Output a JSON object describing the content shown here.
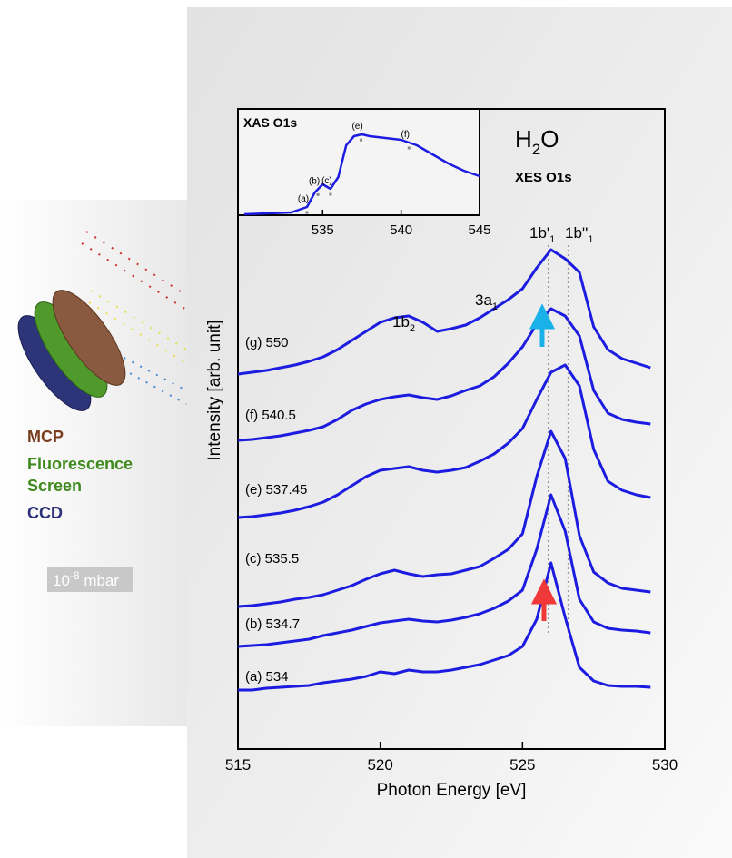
{
  "chart_data": [
    {
      "type": "line",
      "xlabel": "Photon Energy [eV]",
      "ylabel": "Intensity [arb. unit]",
      "x": [
        515,
        515.5,
        516,
        516.5,
        517,
        517.5,
        518,
        518.5,
        519,
        519.5,
        520,
        520.5,
        521,
        521.5,
        522,
        522.5,
        523,
        523.5,
        524,
        524.5,
        525,
        525.5,
        526,
        526.5,
        527,
        527.5,
        528,
        528.5,
        529,
        529.5
      ],
      "series": [
        {
          "name": "(a) 534",
          "color": "#1c1ce0",
          "values": [
            65,
            65,
            67,
            68,
            69,
            70,
            73,
            75,
            77,
            80,
            85,
            83,
            87,
            85,
            85,
            87,
            90,
            93,
            98,
            103,
            113,
            143,
            205,
            145,
            90,
            75,
            70,
            69,
            69,
            68
          ]
        },
        {
          "name": "(b) 534.7",
          "color": "#1c1ce0",
          "values": [
            113,
            114,
            115,
            117,
            119,
            121,
            125,
            128,
            131,
            135,
            139,
            141,
            143,
            141,
            140,
            142,
            145,
            149,
            155,
            163,
            175,
            220,
            280,
            240,
            165,
            140,
            133,
            131,
            130,
            128
          ]
        },
        {
          "name": "(c) 535.5",
          "color": "#1c1ce0",
          "values": [
            157,
            158,
            160,
            162,
            165,
            167,
            170,
            175,
            180,
            187,
            193,
            197,
            193,
            190,
            192,
            193,
            197,
            201,
            210,
            220,
            237,
            300,
            350,
            320,
            235,
            195,
            183,
            177,
            175,
            173
          ]
        },
        {
          "name": "(e) 537.45",
          "color": "#1c1ce0",
          "values": [
            255,
            256,
            258,
            260,
            263,
            267,
            272,
            280,
            290,
            300,
            307,
            309,
            311,
            307,
            305,
            307,
            310,
            317,
            325,
            337,
            353,
            385,
            415,
            423,
            400,
            330,
            295,
            285,
            280,
            277
          ]
        },
        {
          "name": "(f) 540.5",
          "color": "#1c1ce0",
          "values": [
            340,
            341,
            343,
            345,
            348,
            351,
            355,
            363,
            373,
            380,
            385,
            388,
            390,
            387,
            385,
            389,
            395,
            400,
            410,
            425,
            443,
            468,
            485,
            477,
            455,
            395,
            370,
            363,
            360,
            358
          ]
        },
        {
          "name": "(g) 550",
          "color": "#1c1ce0",
          "values": [
            413,
            415,
            417,
            420,
            423,
            427,
            432,
            440,
            450,
            460,
            470,
            475,
            477,
            470,
            460,
            463,
            467,
            475,
            485,
            495,
            507,
            530,
            550,
            540,
            525,
            465,
            440,
            430,
            425,
            420
          ]
        }
      ],
      "xlim": [
        515,
        530
      ],
      "xticks": [
        515,
        520,
        525,
        530
      ],
      "ylim": [
        0,
        705
      ],
      "reference_lines": [
        525.9,
        526.6
      ],
      "annotations": [
        {
          "text": "1b",
          "sub": "2"
        },
        {
          "text": "3a",
          "sub": "1"
        },
        {
          "text": "1b'",
          "sub": "1"
        },
        {
          "text": "1b''",
          "sub": "1"
        },
        {
          "text": "H",
          "sub": "2",
          "after": "O"
        },
        {
          "text": "XES O1s"
        }
      ]
    },
    {
      "type": "line",
      "title": "XAS O1s",
      "x": [
        530,
        533,
        534,
        534.5,
        535,
        535.5,
        536,
        536.5,
        537,
        537.5,
        538,
        539,
        540,
        541,
        542,
        543,
        544,
        545
      ],
      "series": [
        {
          "color": "#1c1ce0",
          "values": [
            1,
            3,
            9,
            25,
            34,
            29,
            42,
            77,
            87,
            89,
            87,
            85,
            83,
            77,
            67,
            57,
            49,
            43
          ]
        }
      ],
      "xlim": [
        529.6,
        545
      ],
      "xticks": [
        535,
        540,
        545
      ],
      "ylim": [
        0,
        117
      ],
      "markers": {
        "labels": [
          "(a)",
          "(b)",
          "(c)",
          "(e)",
          "(f)"
        ],
        "x": [
          534,
          534.7,
          535.5,
          537.45,
          540.5
        ]
      }
    }
  ],
  "illustration": {
    "mcp": "MCP",
    "screen": [
      "Fluorescence",
      "Screen"
    ],
    "ccd": "CCD",
    "pressure": {
      "base": "10",
      "sup": "-8",
      "unit": " mbar"
    }
  }
}
